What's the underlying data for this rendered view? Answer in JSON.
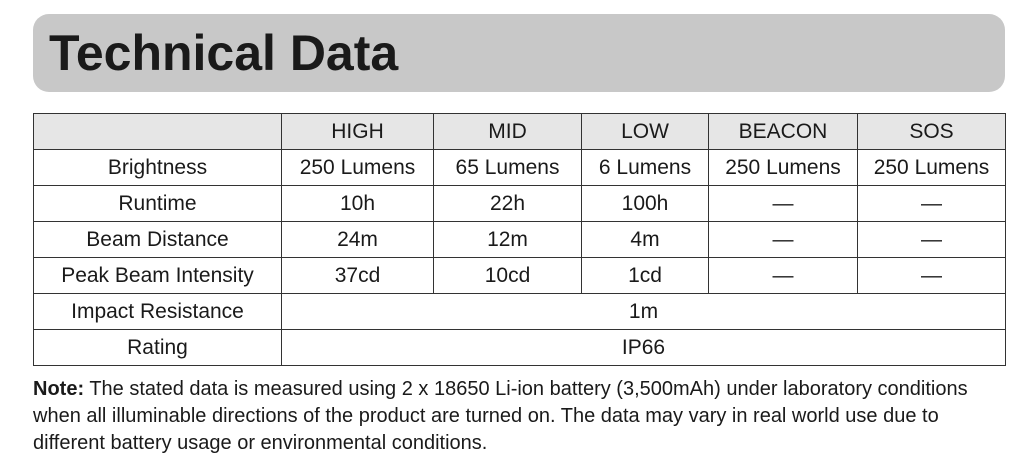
{
  "header": {
    "title": "Technical Data"
  },
  "table": {
    "columns": [
      "HIGH",
      "MID",
      "LOW",
      "BEACON",
      "SOS"
    ],
    "rows": [
      {
        "label": "Brightness",
        "cells": [
          "250 Lumens",
          "65 Lumens",
          "6 Lumens",
          "250 Lumens",
          "250 Lumens"
        ]
      },
      {
        "label": "Runtime",
        "cells": [
          "10h",
          "22h",
          "100h",
          "—",
          "—"
        ]
      },
      {
        "label": "Beam Distance",
        "cells": [
          "24m",
          "12m",
          "4m",
          "—",
          "—"
        ]
      },
      {
        "label": "Peak Beam Intensity",
        "cells": [
          "37cd",
          "10cd",
          "1cd",
          "—",
          "—"
        ]
      },
      {
        "label": "Impact Resistance",
        "cells": [
          "1m"
        ]
      },
      {
        "label": "Rating",
        "cells": [
          "IP66"
        ]
      }
    ]
  },
  "note": {
    "label": "Note:",
    "text": "The stated data is measured using 2 x 18650 Li-ion battery (3,500mAh) under laboratory conditions when all illuminable directions of the product are turned on. The data may vary in real world use due to different battery usage or environmental conditions."
  }
}
